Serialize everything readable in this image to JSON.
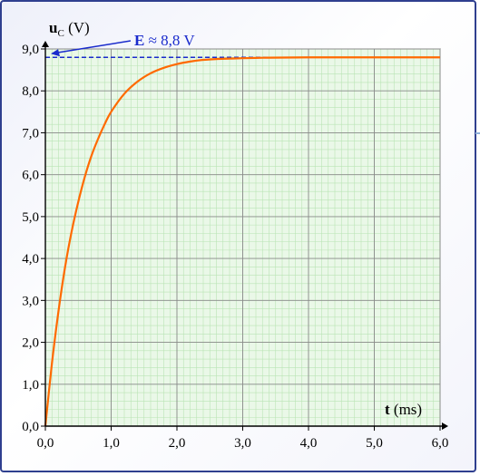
{
  "chart_data": {
    "type": "line",
    "title": "",
    "xlabel": {
      "bold": "t",
      "rest": " (ms)"
    },
    "ylabel": {
      "bold": "u",
      "sub": "C",
      "rest": " (V)"
    },
    "xlim": [
      0,
      6.0
    ],
    "ylim": [
      0,
      9.0
    ],
    "x_ticks": [
      {
        "value": 0,
        "label": "0,0"
      },
      {
        "value": 1,
        "label": "1,0"
      },
      {
        "value": 2,
        "label": "2,0"
      },
      {
        "value": 3,
        "label": "3,0"
      },
      {
        "value": 4,
        "label": "4,0"
      },
      {
        "value": 5,
        "label": "5,0"
      },
      {
        "value": 6,
        "label": "6,0"
      }
    ],
    "y_ticks": [
      {
        "value": 0,
        "label": "0,0"
      },
      {
        "value": 1,
        "label": "1,0"
      },
      {
        "value": 2,
        "label": "2,0"
      },
      {
        "value": 3,
        "label": "3,0"
      },
      {
        "value": 4,
        "label": "4,0"
      },
      {
        "value": 5,
        "label": "5,0"
      },
      {
        "value": 6,
        "label": "6,0"
      },
      {
        "value": 7,
        "label": "7,0"
      },
      {
        "value": 8,
        "label": "8,0"
      },
      {
        "value": 9,
        "label": "9,0"
      }
    ],
    "grid": true,
    "series": [
      {
        "color": "#ff6a00",
        "x": [
          0,
          0.1,
          0.2,
          0.3,
          0.4,
          0.5,
          0.6,
          0.7,
          0.8,
          0.9,
          1.0,
          1.2,
          1.4,
          1.6,
          1.8,
          2.0,
          2.2,
          2.4,
          2.6,
          2.8,
          3.0,
          3.3,
          3.6,
          4.0,
          4.5,
          5.0,
          5.5,
          6.0
        ],
        "y": [
          0,
          1.5,
          2.75,
          3.8,
          4.65,
          5.35,
          5.95,
          6.45,
          6.85,
          7.2,
          7.5,
          7.93,
          8.22,
          8.42,
          8.55,
          8.64,
          8.7,
          8.74,
          8.76,
          8.77,
          8.78,
          8.79,
          8.795,
          8.8,
          8.8,
          8.8,
          8.8,
          8.8
        ]
      }
    ],
    "reference_line": {
      "y": 8.8,
      "color": "#1a2bcc",
      "style": "dashed"
    },
    "annotation": {
      "bold": "E",
      "rest": " ≈ 8,8 V",
      "color": "#1a2bcc"
    }
  }
}
